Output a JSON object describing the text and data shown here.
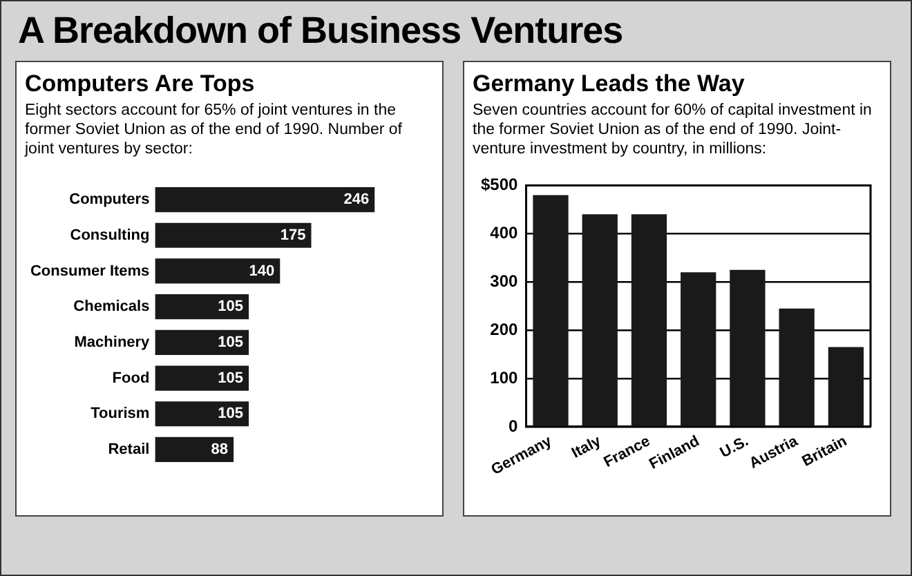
{
  "chart_data": [
    {
      "type": "bar",
      "orientation": "horizontal",
      "title": "Computers Are Tops",
      "subtitle": "Eight sectors account for 65% of joint ventures in the former Soviet Union as of the end of 1990. Number of joint ventures by sector:",
      "annotations": [
        "A Breakdown of Business Ventures"
      ],
      "categories": [
        "Computers",
        "Consulting",
        "Consumer Items",
        "Chemicals",
        "Machinery",
        "Food",
        "Tourism",
        "Retail"
      ],
      "values": [
        246,
        175,
        140,
        105,
        105,
        105,
        105,
        88
      ],
      "color": "#1a1a1a",
      "data_labels": true,
      "tick_labels": "y"
    },
    {
      "type": "bar",
      "title": "Germany Leads the Way",
      "subtitle": "Seven countries account for 60% of capital investment in the former Soviet Union as of the end of 1990. Joint-venture investment by country, in millions:",
      "categories": [
        "Germany",
        "Italy",
        "France",
        "Finland",
        "U.S.",
        "Austria",
        "Britain"
      ],
      "values": [
        480,
        440,
        440,
        320,
        325,
        245,
        165
      ],
      "color": "#1a1a1a",
      "ylim": [
        0,
        500
      ],
      "yticks": [
        0,
        100,
        200,
        300,
        400,
        {
          "value": 500,
          "label": "$500"
        }
      ],
      "grid": "y"
    }
  ]
}
